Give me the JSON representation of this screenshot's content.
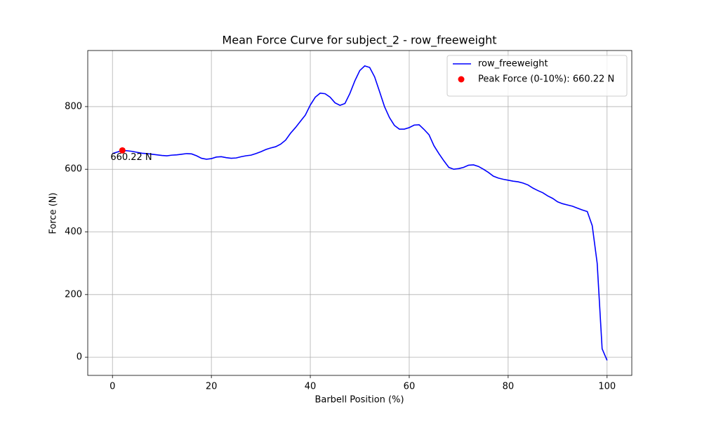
{
  "chart_data": {
    "type": "line",
    "title": "Mean Force Curve for subject_2 - row_freeweight",
    "x_label": "Barbell Position (%)",
    "y_label": "Force (N)",
    "x": [
      0,
      1,
      2,
      3,
      4,
      5,
      6,
      7,
      8,
      9,
      10,
      11,
      12,
      13,
      14,
      15,
      16,
      17,
      18,
      19,
      20,
      21,
      22,
      23,
      24,
      25,
      26,
      27,
      28,
      29,
      30,
      31,
      32,
      33,
      34,
      35,
      36,
      37,
      38,
      39,
      40,
      41,
      42,
      43,
      44,
      45,
      46,
      47,
      48,
      49,
      50,
      51,
      52,
      53,
      54,
      55,
      56,
      57,
      58,
      59,
      60,
      61,
      62,
      63,
      64,
      65,
      66,
      67,
      68,
      69,
      70,
      71,
      72,
      73,
      74,
      75,
      76,
      77,
      78,
      79,
      80,
      81,
      82,
      83,
      84,
      85,
      86,
      87,
      88,
      89,
      90,
      91,
      92,
      93,
      94,
      95,
      96,
      97,
      98,
      99,
      100
    ],
    "series": [
      {
        "name": "row_freeweight",
        "color": "#0000ff",
        "values": [
          650,
          655,
          660,
          659,
          657,
          654,
          651,
          650,
          648,
          646,
          644,
          643,
          645,
          646,
          648,
          650,
          649,
          643,
          635,
          632,
          634,
          639,
          640,
          637,
          635,
          636,
          640,
          643,
          645,
          650,
          656,
          663,
          668,
          672,
          680,
          693,
          715,
          733,
          753,
          773,
          805,
          830,
          843,
          841,
          830,
          812,
          804,
          810,
          842,
          882,
          915,
          930,
          925,
          895,
          848,
          800,
          765,
          740,
          728,
          728,
          733,
          741,
          742,
          727,
          710,
          675,
          650,
          627,
          606,
          600,
          602,
          606,
          613,
          614,
          609,
          600,
          590,
          578,
          572,
          568,
          565,
          562,
          560,
          556,
          550,
          540,
          532,
          525,
          515,
          507,
          496,
          490,
          486,
          482,
          476,
          470,
          465,
          420,
          300,
          27,
          -10
        ]
      }
    ],
    "points": [
      {
        "name": "Peak Force (0-10%): 660.22 N",
        "color": "#ff0000",
        "x": [
          2
        ],
        "values": [
          660.22
        ]
      }
    ],
    "annotations": [
      "660.22 N"
    ],
    "xlim": [
      -5,
      105
    ],
    "ylim": [
      -58,
      979
    ],
    "xticks": [
      0,
      20,
      40,
      60,
      80,
      100
    ],
    "yticks": [
      0,
      200,
      400,
      600,
      800
    ],
    "grid": true,
    "legend": "upper right"
  }
}
